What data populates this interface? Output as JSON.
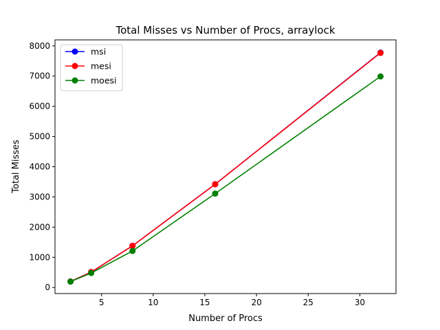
{
  "chart_data": {
    "type": "line",
    "title": "Total Misses vs Number of Procs, arraylock",
    "xlabel": "Number of Procs",
    "ylabel": "Total Misses",
    "x": [
      2,
      4,
      8,
      16,
      32
    ],
    "xlim": [
      0.5,
      33.5
    ],
    "ylim": [
      -200,
      8200
    ],
    "xticks": [
      5,
      10,
      15,
      20,
      25,
      30
    ],
    "yticks": [
      0,
      1000,
      2000,
      3000,
      4000,
      5000,
      6000,
      7000,
      8000
    ],
    "grid": false,
    "legend_position": "top-left",
    "series": [
      {
        "name": "msi",
        "color": "#0000ff",
        "values": [
          200,
          510,
          1380,
          3420,
          7780
        ]
      },
      {
        "name": "mesi",
        "color": "#ff0000",
        "values": [
          200,
          510,
          1380,
          3420,
          7770
        ]
      },
      {
        "name": "moesi",
        "color": "#008000",
        "values": [
          195,
          480,
          1210,
          3110,
          6990
        ]
      }
    ]
  }
}
